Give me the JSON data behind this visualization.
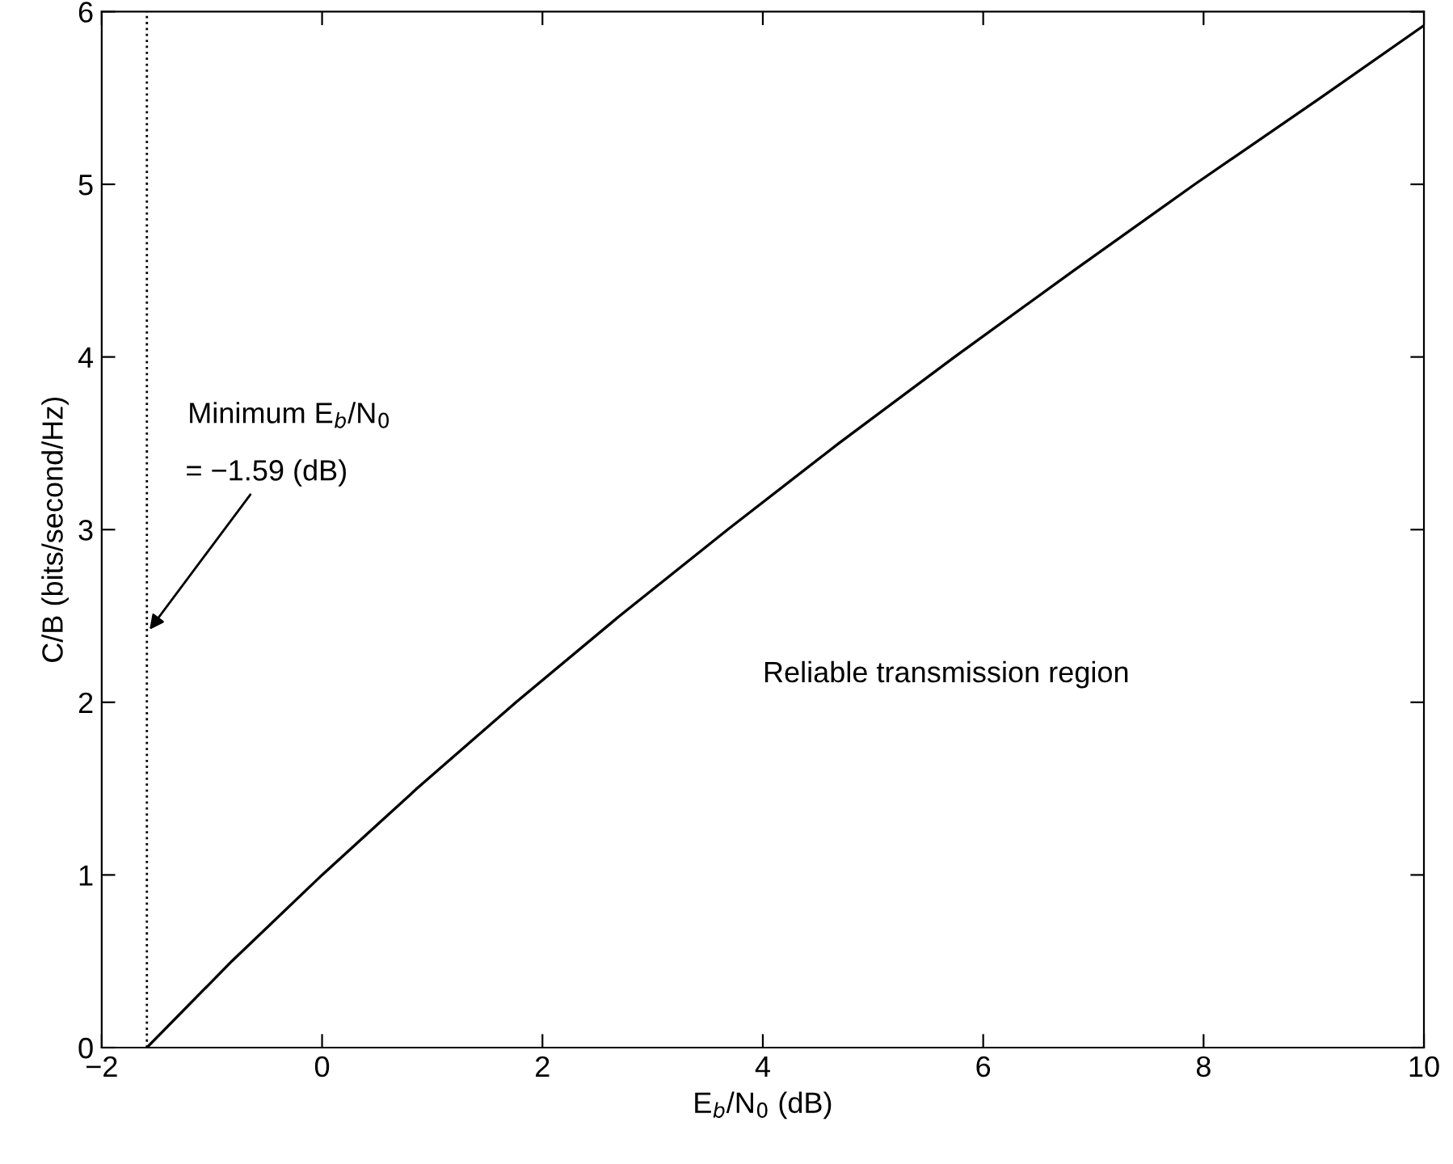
{
  "chart_data": {
    "type": "line",
    "xlabel": "E$_{b}$/N$_{0}$ (dB)",
    "ylabel": "C/B (bits/second/Hz)",
    "x": [
      -1.59,
      -0.82,
      0,
      0.86,
      1.76,
      2.7,
      3.68,
      4.69,
      5.74,
      6.82,
      7.92,
      9.06,
      10
    ],
    "series": [
      {
        "color": "#000000",
        "values": [
          0,
          0.5,
          1,
          1.5,
          2,
          2.5,
          3,
          3.5,
          4,
          4.5,
          5,
          5.5,
          5.92
        ]
      }
    ],
    "xlim": [
      -2,
      10
    ],
    "xticks": [
      {
        "value": -2,
        "label": "−2"
      },
      0,
      2,
      4,
      6,
      8,
      10
    ],
    "ylim": [
      0,
      6
    ],
    "yticks": [
      0,
      1,
      2,
      3,
      4,
      5,
      6
    ],
    "ref_lines": [
      {
        "axis": "x",
        "value": -1.59,
        "color": "#000000",
        "line_style": "dotted"
      }
    ],
    "annotations": [
      "Minimum E$_{b}$/N$_{0}$",
      {
        "text": "= −1.59 (dB)",
        "x": -1.59,
        "y": 2.4
      },
      "Reliable transmission region"
    ],
    "grid": false,
    "legend": false,
    "marker": "none",
    "line_style": "solid"
  }
}
